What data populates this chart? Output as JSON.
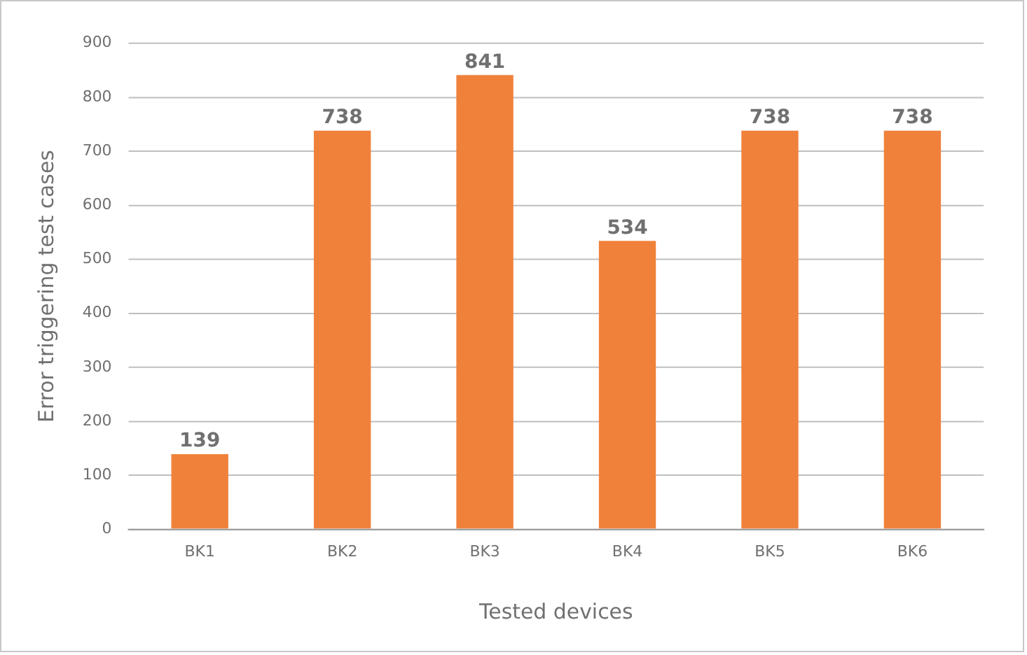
{
  "chart_data": {
    "type": "bar",
    "xlabel": "Tested devices",
    "ylabel": "Error triggering test cases",
    "categories": [
      "BK1",
      "BK2",
      "BK3",
      "BK4",
      "BK5",
      "BK6"
    ],
    "values": [
      139,
      738,
      841,
      534,
      738,
      738
    ],
    "color": "#f0813a",
    "ylim": [
      0,
      900
    ],
    "yticks": [
      0,
      100,
      200,
      300,
      400,
      500,
      600,
      700,
      800,
      900
    ],
    "grid": "y",
    "data_labels": true
  }
}
